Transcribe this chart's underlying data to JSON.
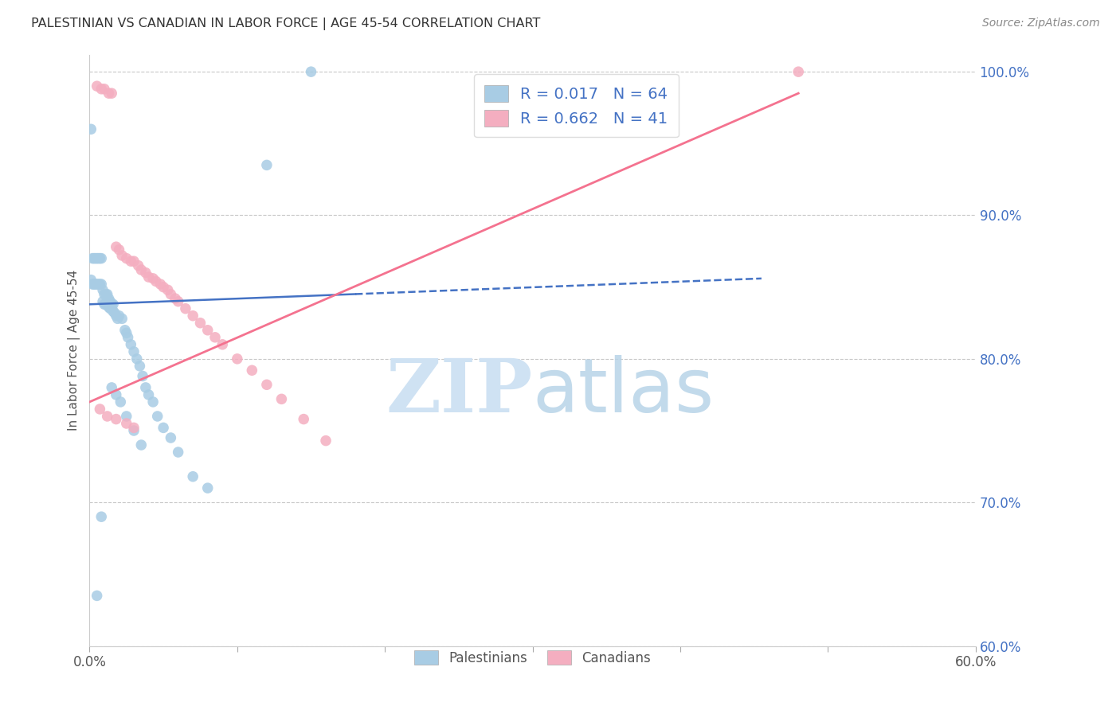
{
  "title": "PALESTINIAN VS CANADIAN IN LABOR FORCE | AGE 45-54 CORRELATION CHART",
  "source": "Source: ZipAtlas.com",
  "ylabel": "In Labor Force | Age 45-54",
  "xmin": 0.0,
  "xmax": 0.6,
  "ymin": 0.6,
  "ymax": 1.012,
  "yticks": [
    0.6,
    0.7,
    0.8,
    0.9,
    1.0
  ],
  "ytick_labels": [
    "60.0%",
    "70.0%",
    "80.0%",
    "90.0%",
    "100.0%"
  ],
  "xtick_show": [
    0.0,
    0.1,
    0.2,
    0.3,
    0.4,
    0.5,
    0.6
  ],
  "palestinian_R": 0.017,
  "palestinian_N": 64,
  "canadian_R": 0.662,
  "canadian_N": 41,
  "blue_color": "#a8cce4",
  "pink_color": "#f4aec0",
  "blue_line_color": "#4472c4",
  "pink_line_color": "#f4728f",
  "ytick_color": "#4472c4",
  "watermark_color": "#cfe2f3",
  "legend_R_color": "#4472c4",
  "legend_N_color": "#e06020",
  "pal_x": [
    0.001,
    0.002,
    0.003,
    0.004,
    0.005,
    0.006,
    0.007,
    0.008,
    0.001,
    0.002,
    0.003,
    0.004,
    0.005,
    0.006,
    0.007,
    0.008,
    0.009,
    0.01,
    0.011,
    0.012,
    0.013,
    0.014,
    0.015,
    0.016,
    0.009,
    0.01,
    0.011,
    0.012,
    0.013,
    0.014,
    0.015,
    0.016,
    0.017,
    0.018,
    0.019,
    0.02,
    0.022,
    0.024,
    0.025,
    0.026,
    0.028,
    0.03,
    0.032,
    0.034,
    0.036,
    0.038,
    0.04,
    0.043,
    0.046,
    0.05,
    0.055,
    0.06,
    0.07,
    0.08,
    0.015,
    0.018,
    0.021,
    0.025,
    0.03,
    0.035,
    0.005,
    0.008,
    0.12,
    0.15
  ],
  "pal_y": [
    0.96,
    0.87,
    0.87,
    0.87,
    0.87,
    0.87,
    0.87,
    0.87,
    0.855,
    0.852,
    0.852,
    0.852,
    0.852,
    0.852,
    0.852,
    0.852,
    0.848,
    0.845,
    0.845,
    0.845,
    0.842,
    0.84,
    0.838,
    0.838,
    0.84,
    0.838,
    0.838,
    0.838,
    0.836,
    0.835,
    0.835,
    0.833,
    0.832,
    0.83,
    0.828,
    0.83,
    0.828,
    0.82,
    0.818,
    0.815,
    0.81,
    0.805,
    0.8,
    0.795,
    0.788,
    0.78,
    0.775,
    0.77,
    0.76,
    0.752,
    0.745,
    0.735,
    0.718,
    0.71,
    0.78,
    0.775,
    0.77,
    0.76,
    0.75,
    0.74,
    0.635,
    0.69,
    0.935,
    1.0
  ],
  "can_x": [
    0.005,
    0.008,
    0.01,
    0.013,
    0.015,
    0.018,
    0.02,
    0.022,
    0.025,
    0.028,
    0.03,
    0.033,
    0.035,
    0.038,
    0.04,
    0.043,
    0.045,
    0.048,
    0.05,
    0.053,
    0.055,
    0.058,
    0.06,
    0.065,
    0.07,
    0.075,
    0.08,
    0.085,
    0.09,
    0.1,
    0.11,
    0.12,
    0.13,
    0.145,
    0.16,
    0.007,
    0.012,
    0.018,
    0.025,
    0.03,
    0.48
  ],
  "can_y": [
    0.99,
    0.988,
    0.988,
    0.985,
    0.985,
    0.878,
    0.876,
    0.872,
    0.87,
    0.868,
    0.868,
    0.865,
    0.862,
    0.86,
    0.857,
    0.856,
    0.854,
    0.852,
    0.85,
    0.848,
    0.845,
    0.842,
    0.84,
    0.835,
    0.83,
    0.825,
    0.82,
    0.815,
    0.81,
    0.8,
    0.792,
    0.782,
    0.772,
    0.758,
    0.743,
    0.765,
    0.76,
    0.758,
    0.755,
    0.752,
    1.0
  ],
  "pal_trend_x": [
    0.0,
    0.455
  ],
  "pal_trend_y": [
    0.838,
    0.856
  ],
  "can_trend_x": [
    0.0,
    0.48
  ],
  "can_trend_y": [
    0.77,
    0.985
  ]
}
